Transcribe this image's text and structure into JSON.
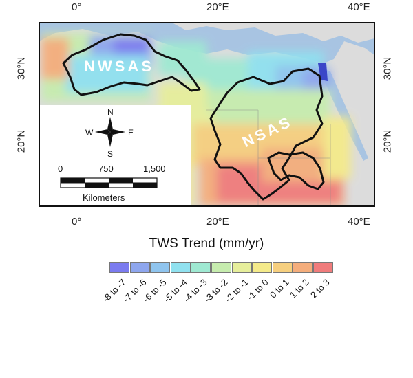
{
  "map": {
    "lon_labels_top": [
      "0°",
      "20°E",
      "40°E"
    ],
    "lon_labels_bottom": [
      "0°",
      "20°E",
      "40°E"
    ],
    "lat_labels_left": [
      "30°N",
      "20°N"
    ],
    "lat_labels_right": [
      "30°N",
      "20°N"
    ],
    "region_labels": [
      "NWSAS",
      "NSAS"
    ]
  },
  "inset": {
    "compass": {
      "n": "N",
      "s": "S",
      "e": "E",
      "w": "W"
    },
    "scale_values": [
      "0",
      "750",
      "1,500"
    ],
    "scale_unit": "Kilometers"
  },
  "legend": {
    "title": "TWS Trend (mm/yr)",
    "classes": [
      {
        "label": "-8 to -7",
        "color": "#7b7bef"
      },
      {
        "label": "-7 to -6",
        "color": "#8ea6ee"
      },
      {
        "label": "-6 to -5",
        "color": "#8fc4ee"
      },
      {
        "label": "-5 to -4",
        "color": "#90e1ef"
      },
      {
        "label": "-4 to -3",
        "color": "#9fe9d2"
      },
      {
        "label": "-3 to -2",
        "color": "#c6ecae"
      },
      {
        "label": "-2 to -1",
        "color": "#e6ee9b"
      },
      {
        "label": "-1 to 0",
        "color": "#f4ea8a"
      },
      {
        "label": "0 to 1",
        "color": "#f6cf7f"
      },
      {
        "label": "1 to 2",
        "color": "#f4ad7c"
      },
      {
        "label": "2 to 3",
        "color": "#f07c7c"
      }
    ]
  },
  "colors": {
    "sea": "#a8c4e2",
    "land": "#dcdcdc",
    "nile": "#3a46c8"
  }
}
